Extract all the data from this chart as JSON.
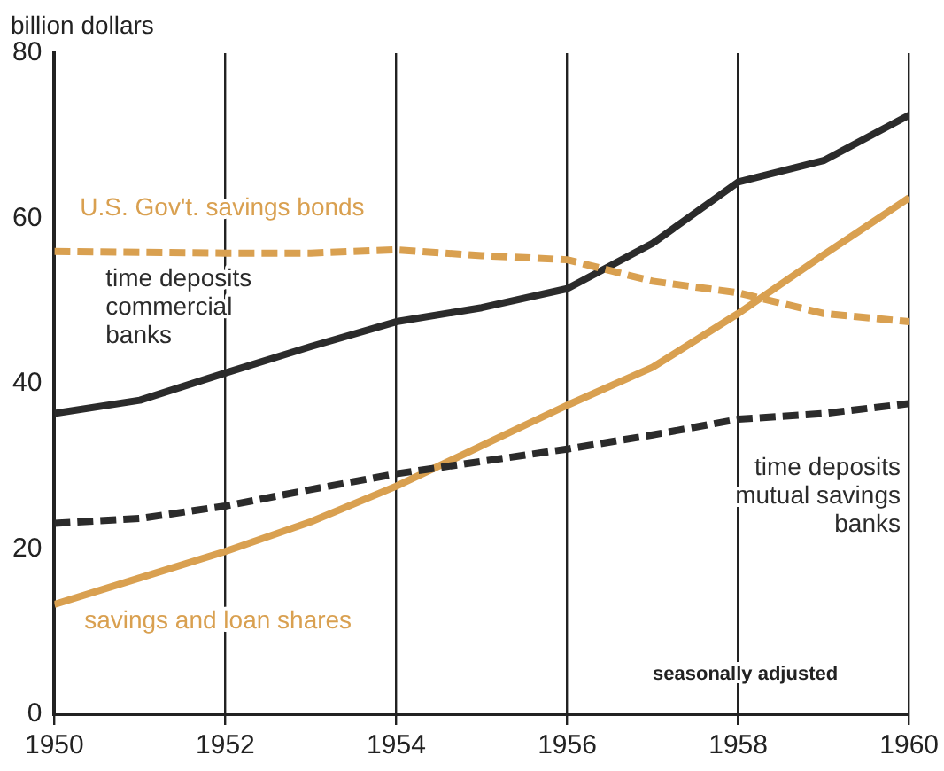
{
  "chart_data": {
    "type": "line",
    "ylabel": "billion dollars",
    "x": [
      1950,
      1951,
      1952,
      1953,
      1954,
      1955,
      1956,
      1957,
      1958,
      1959,
      1960
    ],
    "xlim": [
      1950,
      1960
    ],
    "xticks": [
      1950,
      1952,
      1954,
      1956,
      1958,
      1960
    ],
    "ylim": [
      0,
      80
    ],
    "yticks": [
      0,
      20,
      40,
      60,
      80
    ],
    "grid": "x",
    "legend": false,
    "marker": "none",
    "series": [
      {
        "name": "U.S. Gov't. savings bonds",
        "color": "#d9a050",
        "line_style": "dashed",
        "values": [
          56,
          55.9,
          55.8,
          55.8,
          56.2,
          55.5,
          55,
          52.4,
          51,
          48.5,
          47.5
        ]
      },
      {
        "name": "time deposits commercial banks",
        "color": "#2b2b2b",
        "line_style": "solid",
        "values": [
          36.4,
          38,
          41.3,
          44.5,
          47.5,
          49.2,
          51.5,
          57,
          64.4,
          67,
          72.5
        ]
      },
      {
        "name": "time deposits mutual savings banks",
        "color": "#2b2b2b",
        "line_style": "dashed",
        "values": [
          23.1,
          23.7,
          25.2,
          27.2,
          29.1,
          30.6,
          32.1,
          33.8,
          35.7,
          36.4,
          37.6
        ]
      },
      {
        "name": "savings and loan shares",
        "color": "#d9a050",
        "line_style": "solid",
        "values": [
          13.3,
          16.5,
          19.7,
          23.3,
          27.6,
          32.5,
          37.4,
          42,
          48.5,
          55.6,
          62.5
        ]
      }
    ],
    "annotations": [
      "seasonally adjusted"
    ]
  }
}
